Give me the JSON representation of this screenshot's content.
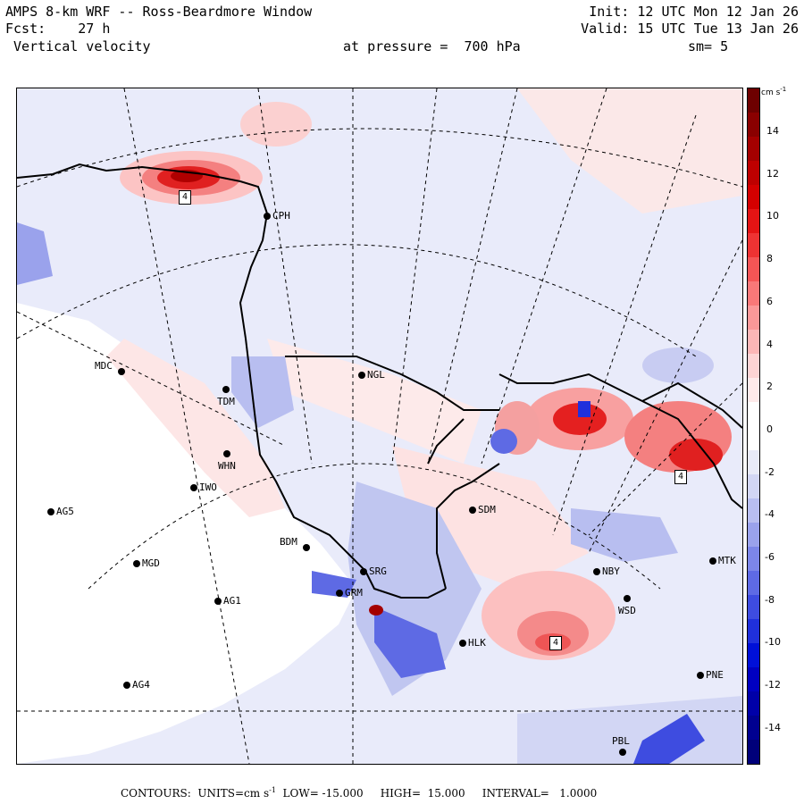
{
  "header": {
    "line1_left": "AMPS 8-km WRF -- Ross-Beardmore Window",
    "line2_left": "Fcst:    27 h",
    "line3_left": " Vertical velocity",
    "line1_right": "Init: 12 UTC Mon 12 Jan 26",
    "line2_right": "Valid: 15 UTC Tue 13 Jan 26",
    "pressure": "at pressure =  700 hPa",
    "smoothing": "sm= 5"
  },
  "stations": [
    {
      "id": "CPH",
      "label": "CPH"
    },
    {
      "id": "MDC",
      "label": "MDC"
    },
    {
      "id": "NGL",
      "label": "NGL"
    },
    {
      "id": "TDM",
      "label": "TDM"
    },
    {
      "id": "WHN",
      "label": "WHN"
    },
    {
      "id": "IWO",
      "label": "IWO"
    },
    {
      "id": "AG5",
      "label": "AG5"
    },
    {
      "id": "SDM",
      "label": "SDM"
    },
    {
      "id": "BDM",
      "label": "BDM"
    },
    {
      "id": "MGD",
      "label": "MGD"
    },
    {
      "id": "SRG",
      "label": "SRG"
    },
    {
      "id": "GRM",
      "label": "GRM"
    },
    {
      "id": "AG1",
      "label": "AG1"
    },
    {
      "id": "NBY",
      "label": "NBY"
    },
    {
      "id": "MTK",
      "label": "MTK"
    },
    {
      "id": "WSD",
      "label": "WSD"
    },
    {
      "id": "HLK",
      "label": "HLK"
    },
    {
      "id": "AG4",
      "label": "AG4"
    },
    {
      "id": "PNE",
      "label": "PNE"
    },
    {
      "id": "PBL",
      "label": "PBL"
    }
  ],
  "colorbar": {
    "units": "cm s",
    "units_exp": "-1",
    "ticks": [
      "14",
      "12",
      "10",
      "8",
      "6",
      "4",
      "2",
      "0",
      "-2",
      "-4",
      "-6",
      "-8",
      "-10",
      "-12",
      "-14"
    ],
    "colors_top_to_bottom": [
      "#6e0000",
      "#8a0000",
      "#a40000",
      "#be0000",
      "#d40000",
      "#e41414",
      "#ee3333",
      "#f45555",
      "#f87878",
      "#fa9898",
      "#fcb6b6",
      "#fdd4d4",
      "#feeaea",
      "#ffffff",
      "#ffffff",
      "#e8eaf8",
      "#d2d6f4",
      "#b8bef0",
      "#9aa2ec",
      "#7c86e8",
      "#5e6ae4",
      "#3e4ce0",
      "#2030dc",
      "#0010d8",
      "#0000c0",
      "#0000a8",
      "#000090",
      "#00007a"
    ]
  },
  "max_label": "4",
  "footer": {
    "contours": "CONTOURS:  UNITS=cm s",
    "units_exp": "-1",
    "low": "LOW= -15.000",
    "high": "HIGH=  15.000",
    "interval": "INTERVAL=   1.0000"
  }
}
